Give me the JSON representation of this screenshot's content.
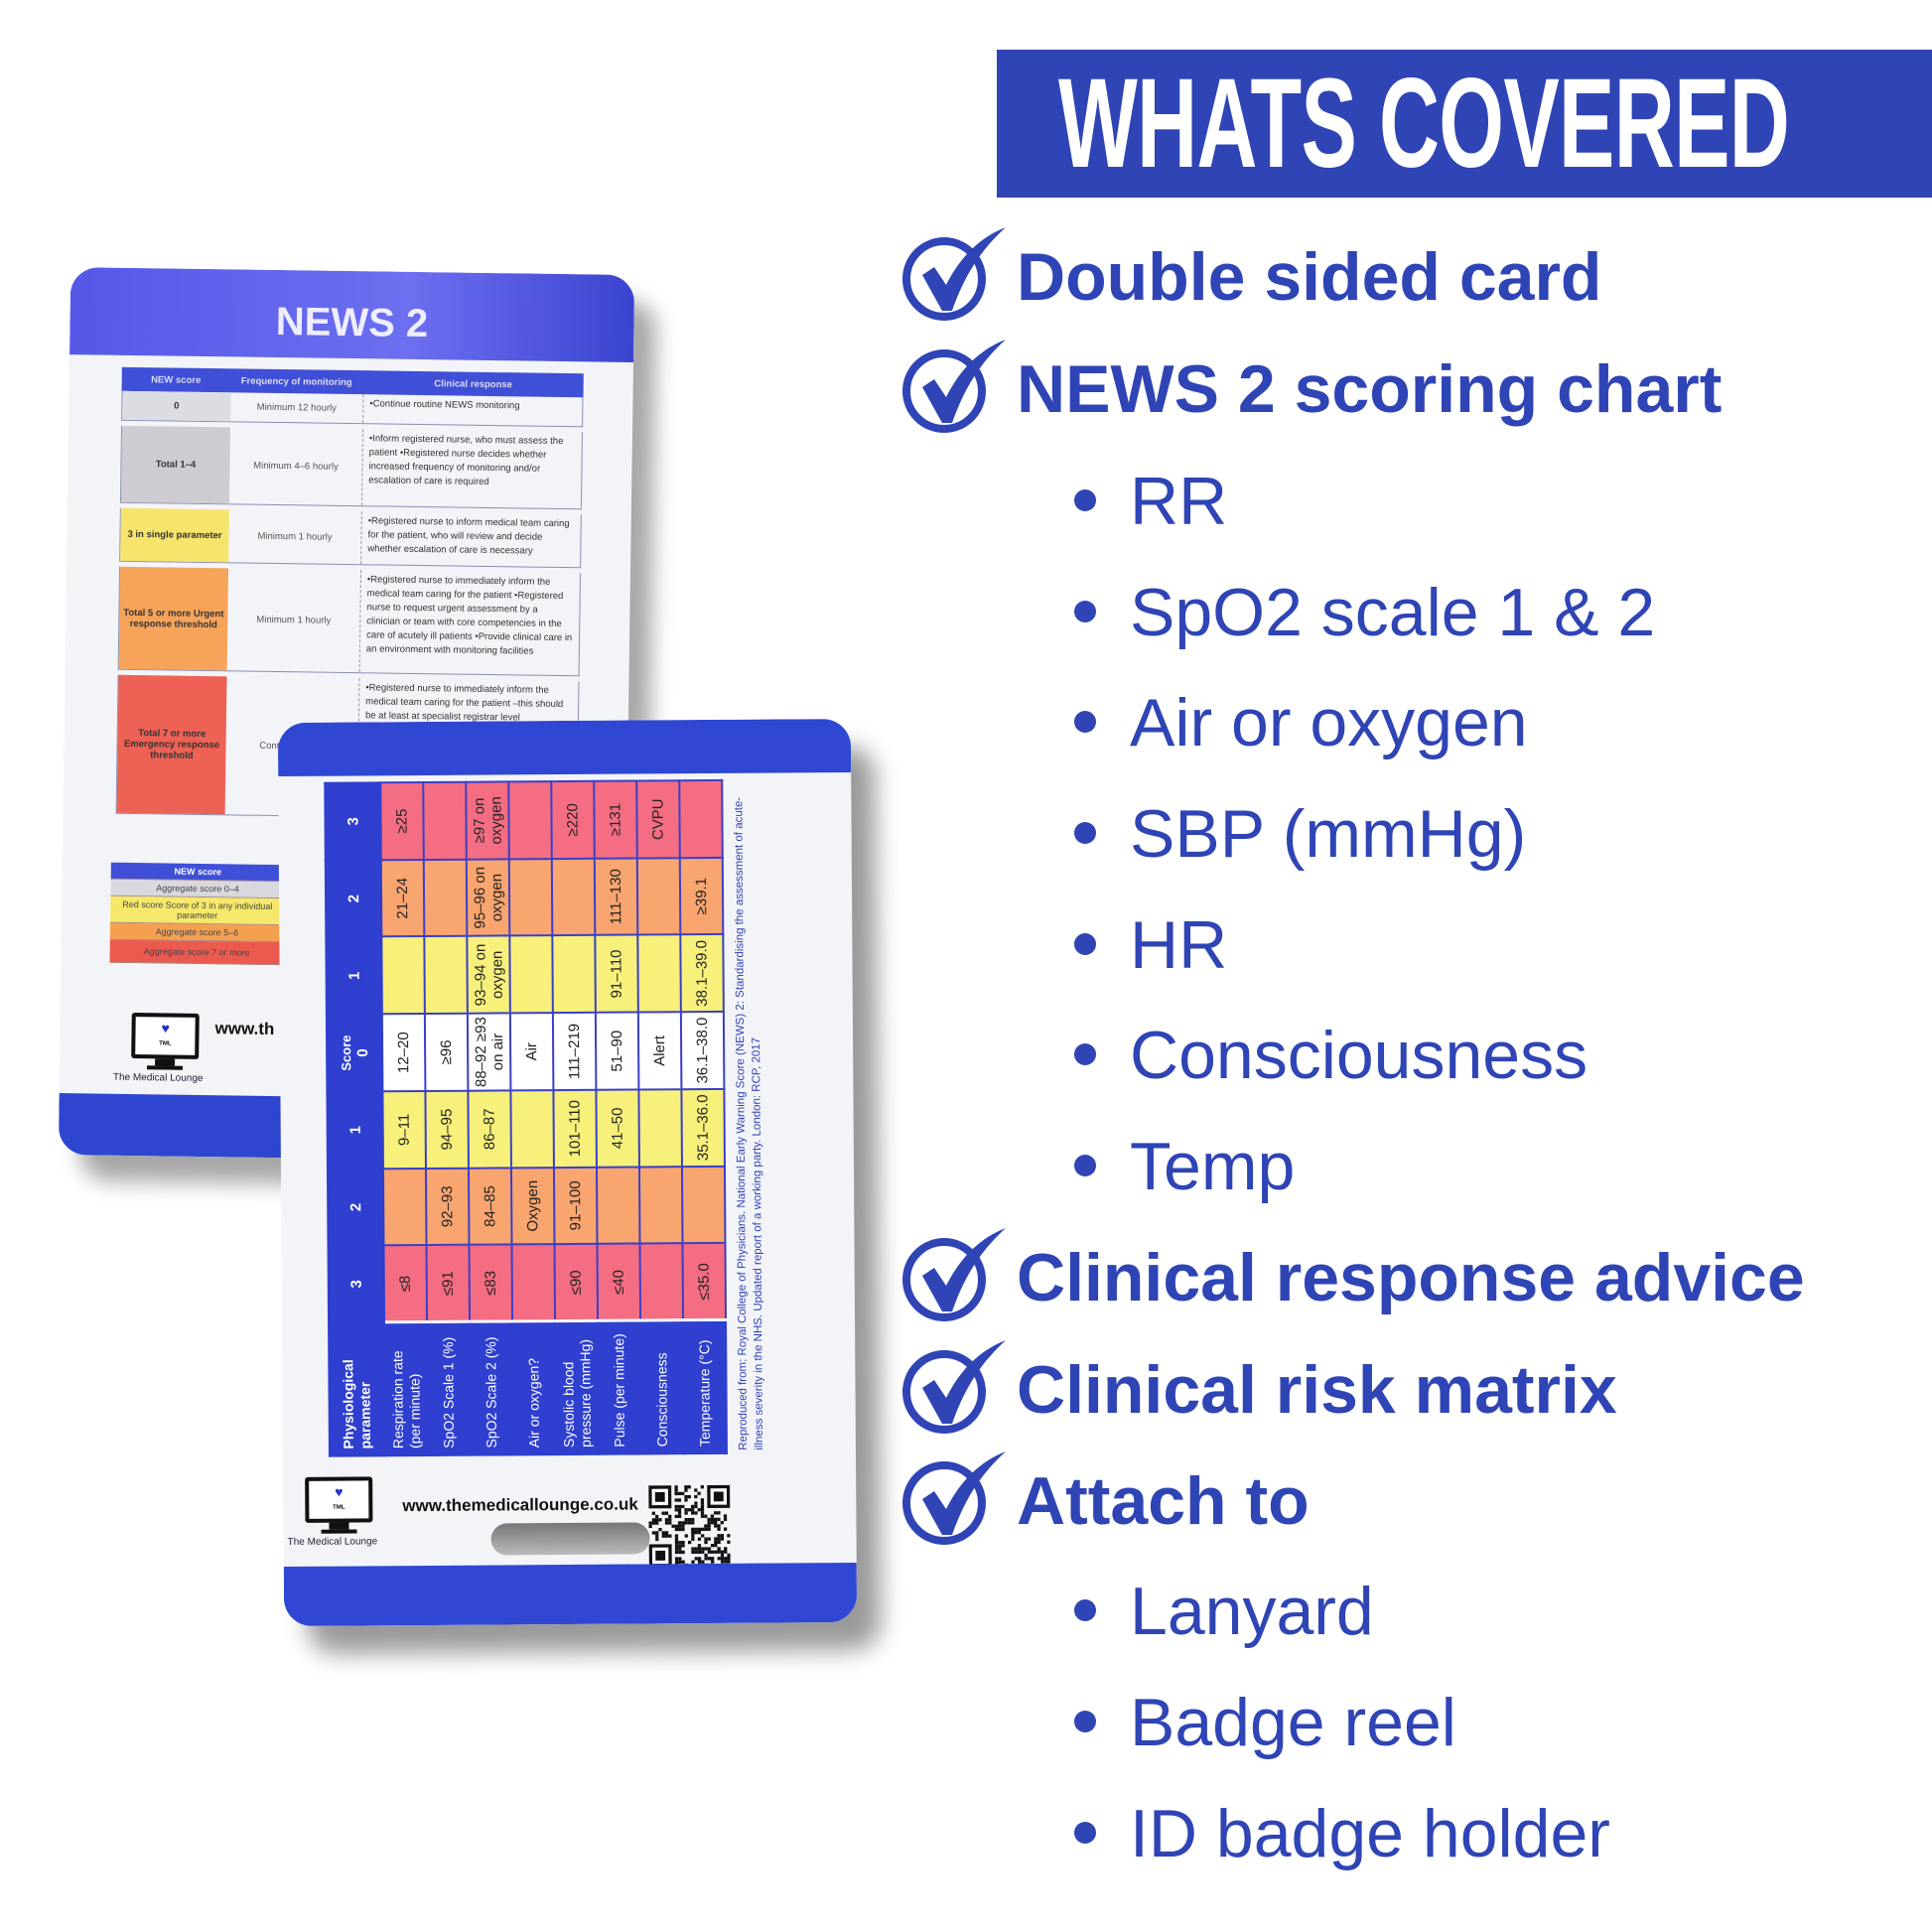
{
  "banner": {
    "title": "WHATS COVERED"
  },
  "features": [
    {
      "label": "Double sided card",
      "icon": "check-circle-icon"
    },
    {
      "label": "NEWS 2 scoring chart",
      "icon": "check-circle-icon",
      "sub": [
        "RR",
        "SpO2 scale 1 & 2",
        "Air or oxygen",
        "SBP (mmHg)",
        "HR",
        "Consciousness",
        "Temp"
      ]
    },
    {
      "label": "Clinical response advice",
      "icon": "check-circle-icon"
    },
    {
      "label": "Clinical risk matrix",
      "icon": "check-circle-icon"
    },
    {
      "label": "Attach to",
      "icon": "check-circle-icon",
      "sub": [
        "Lanyard",
        "Badge reel",
        "ID badge holder"
      ]
    }
  ],
  "colors": {
    "brand": "#2f44b5",
    "score3": "#f46d82",
    "score2": "#f8a56f",
    "score1": "#f7f07a",
    "score0": "#ffffff"
  },
  "back_card": {
    "title": "NEWS 2",
    "headers": [
      "NEW score",
      "Frequency of monitoring",
      "Clinical response"
    ],
    "rows": [
      {
        "score": "0",
        "freq": "Minimum 12 hourly",
        "response": "•Continue routine NEWS monitoring",
        "color": "#dcdde3"
      },
      {
        "score": "Total 1–4",
        "freq": "Minimum 4–6 hourly",
        "response": "•Inform registered nurse, who must assess the patient •Registered nurse decides whether increased frequency of monitoring and/or escalation of care is required",
        "color": "#cfcbd3"
      },
      {
        "score": "3 in single parameter",
        "freq": "Minimum 1 hourly",
        "response": "•Registered nurse to inform medical team caring for the patient, who will review and decide whether escalation of care is necessary",
        "color": "#f6e46c"
      },
      {
        "score": "Total 5 or more Urgent response threshold",
        "freq": "Minimum 1 hourly",
        "response": "•Registered nurse to immediately inform the medical team caring for the patient •Registered nurse to request urgent assessment by a clinician or team with core competencies in the care of acutely ill patients •Provide clinical care in an environment with monitoring facilities",
        "color": "#f6a45a"
      },
      {
        "score": "Total 7 or more Emergency response threshold",
        "freq": "Continuous vita",
        "response": "•Registered nurse to immediately inform the medical team caring for the patient –this should be at least at specialist registrar level",
        "color": "#ee6155"
      }
    ],
    "key": {
      "header": "NEW score",
      "items": [
        "Aggregate score 0–4",
        "Red score Score of 3 in any individual parameter",
        "Aggregate score 5–6",
        "Aggregate score 7 or more"
      ]
    },
    "url_partial": "www.th",
    "logo_text": "TML",
    "brand_name": "The Medical Lounge"
  },
  "front_card": {
    "param_header": "Physiological parameter",
    "score_label": "Score",
    "scores": [
      "3",
      "2",
      "1",
      "0",
      "1",
      "2",
      "3"
    ],
    "rows": [
      {
        "param": "Respiration rate (per minute)",
        "cells": [
          "≤8",
          "",
          "9–11",
          "12–20",
          "",
          "21–24",
          "≥25"
        ]
      },
      {
        "param": "SpO2 Scale 1 (%)",
        "cells": [
          "≤91",
          "92–93",
          "94–95",
          "≥96",
          "",
          "",
          ""
        ]
      },
      {
        "param": "SpO2 Scale 2 (%)",
        "cells": [
          "≤83",
          "84–85",
          "86–87",
          "88–92 ≥93 on air",
          "93–94 on oxygen",
          "95–96 on oxygen",
          "≥97 on oxygen"
        ]
      },
      {
        "param": "Air or oxygen?",
        "cells": [
          "",
          "Oxygen",
          "",
          "Air",
          "",
          "",
          ""
        ]
      },
      {
        "param": "Systolic blood pressure (mmHg)",
        "cells": [
          "≤90",
          "91–100",
          "101–110",
          "111–219",
          "",
          "",
          "≥220"
        ]
      },
      {
        "param": "Pulse (per minute)",
        "cells": [
          "≤40",
          "",
          "41–50",
          "51–90",
          "91–110",
          "111–130",
          "≥131"
        ]
      },
      {
        "param": "Consciousness",
        "cells": [
          "",
          "",
          "",
          "Alert",
          "",
          "",
          "CVPU"
        ]
      },
      {
        "param": "Temperature (°C)",
        "cells": [
          "≤35.0",
          "",
          "35.1–36.0",
          "36.1–38.0",
          "38.1–39.0",
          "≥39.1",
          ""
        ]
      }
    ],
    "footnote": "Reproduced from: Royal College of Physicians. National Early Warning Score (NEWS) 2: Standardising the assessment of acute-illness severity in the NHS. Updated report of a working party. London: RCP, 2017",
    "url": "www.themedicallounge.co.uk",
    "logo_text": "TML",
    "brand_name": "The Medical Lounge"
  }
}
